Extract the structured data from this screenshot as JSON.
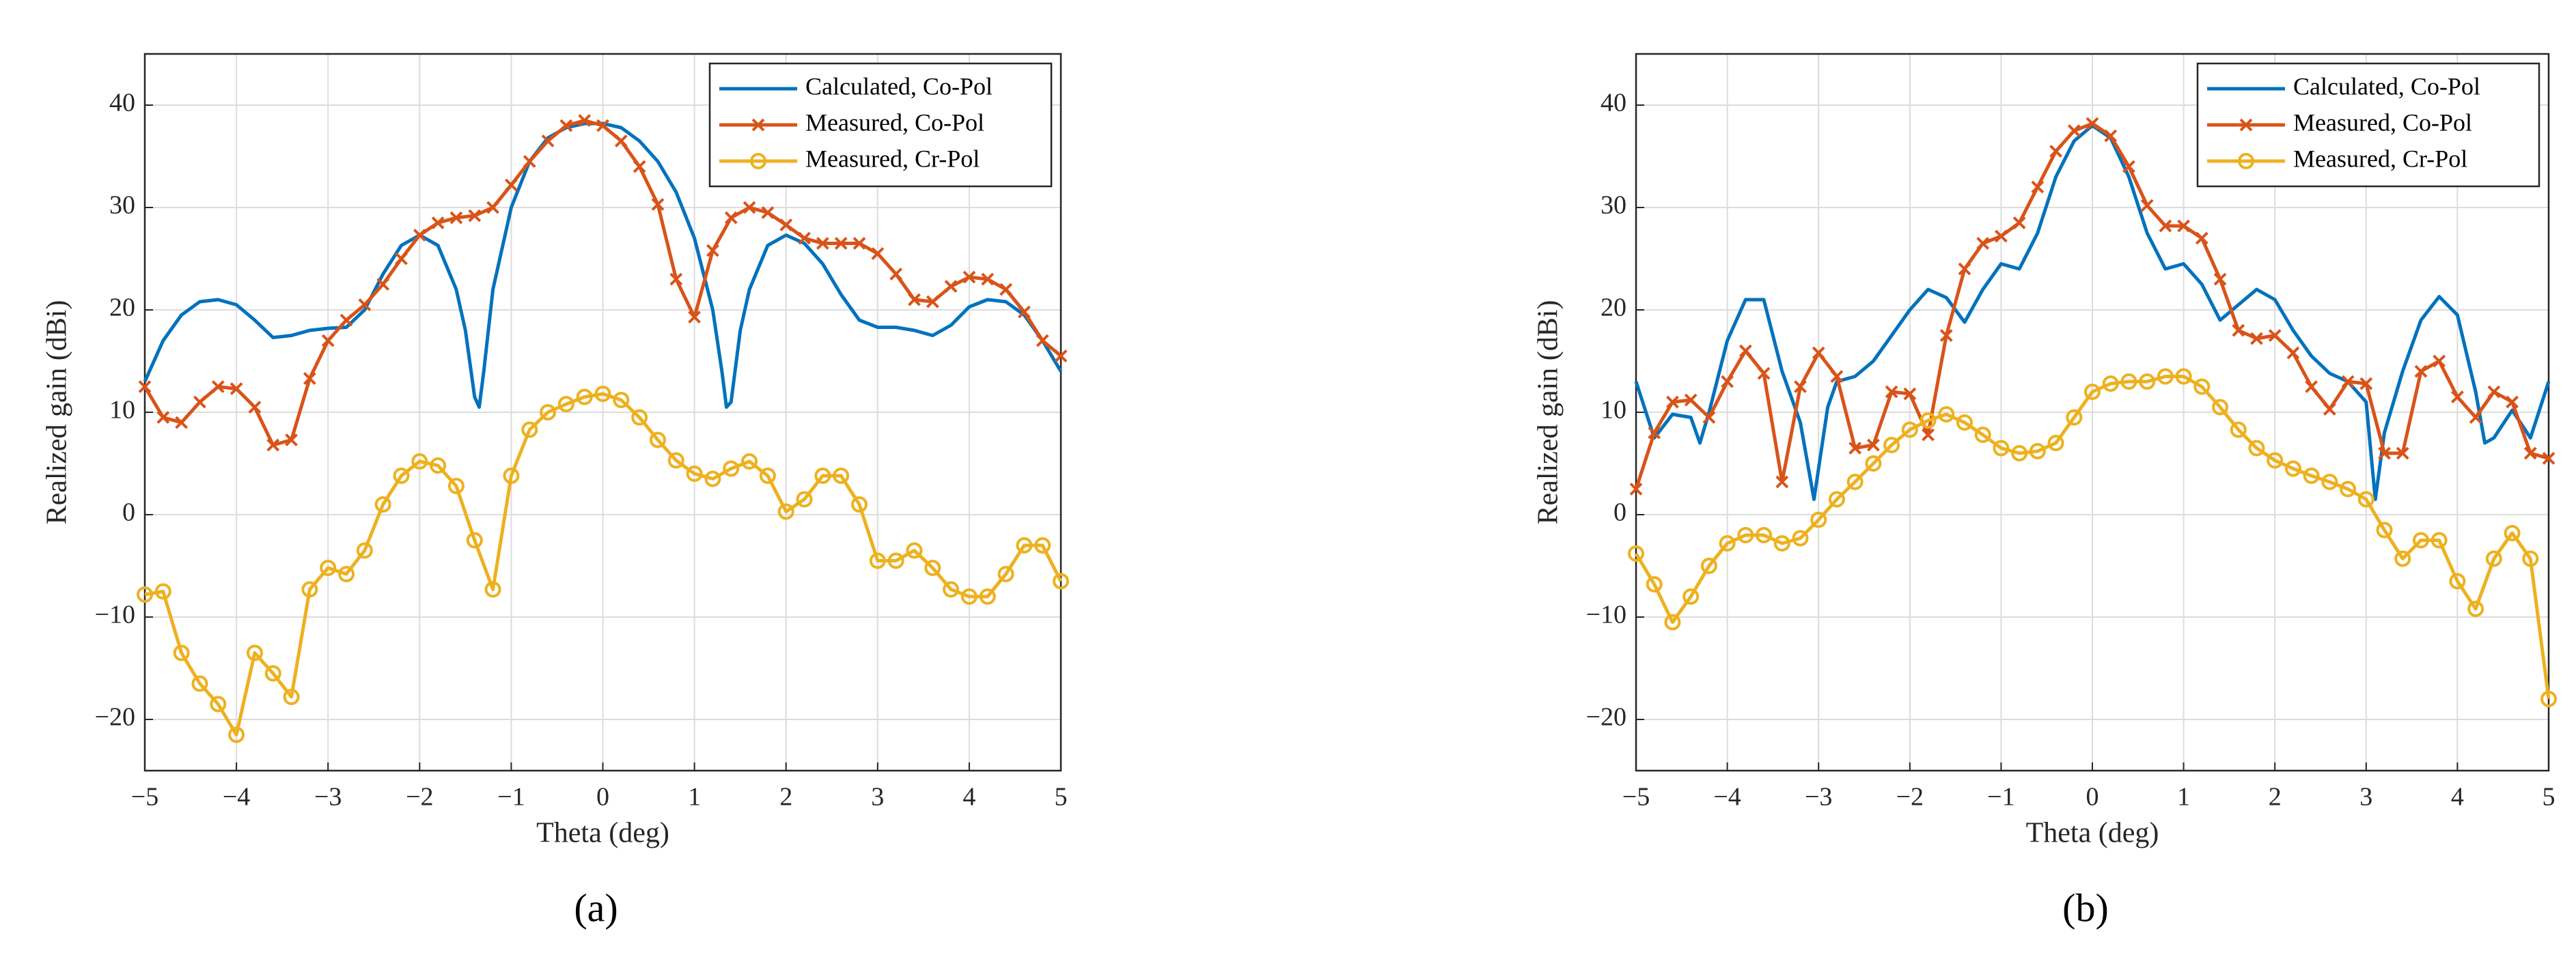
{
  "chart_data": [
    {
      "type": "line",
      "label": "(a)",
      "xlabel": "Theta (deg)",
      "ylabel": "Realized gain (dBi)",
      "xlim": [
        -5,
        5
      ],
      "ylim": [
        -25,
        45
      ],
      "xticks": [
        {
          "value": -5,
          "label": "−5"
        },
        {
          "value": -4,
          "label": "−4"
        },
        {
          "value": -3,
          "label": "−3"
        },
        {
          "value": -2,
          "label": "−2"
        },
        {
          "value": -1,
          "label": "−1"
        },
        0,
        1,
        2,
        3,
        4,
        5
      ],
      "yticks": [
        {
          "value": -20,
          "label": "−20"
        },
        {
          "value": -10,
          "label": "−10"
        },
        0,
        10,
        20,
        30,
        40
      ],
      "grid": true,
      "legend": "upper right",
      "series": [
        {
          "name": "Calculated, Co-Pol",
          "color": "#0072BD",
          "marker": "none",
          "x": [
            -5,
            -4.8,
            -4.6,
            -4.4,
            -4.2,
            -4,
            -3.8,
            -3.6,
            -3.4,
            -3.2,
            -3,
            -2.8,
            -2.6,
            -2.4,
            -2.2,
            -2,
            -1.8,
            -1.6,
            -1.5,
            -1.4,
            -1.35,
            -1.3,
            -1.2,
            -1,
            -0.8,
            -0.6,
            -0.4,
            -0.2,
            0,
            0.2,
            0.4,
            0.6,
            0.8,
            1,
            1.2,
            1.3,
            1.35,
            1.4,
            1.5,
            1.6,
            1.8,
            2,
            2.2,
            2.4,
            2.6,
            2.8,
            3,
            3.2,
            3.4,
            3.6,
            3.8,
            4,
            4.2,
            4.4,
            4.6,
            4.8,
            5
          ],
          "values": [
            13,
            17,
            19.5,
            20.8,
            21,
            20.5,
            19,
            17.3,
            17.5,
            18,
            18.2,
            18.3,
            20,
            23.5,
            26.3,
            27.3,
            26.3,
            22,
            18,
            11.5,
            10.5,
            14,
            22,
            30,
            34.5,
            36.8,
            37.8,
            38.2,
            38.2,
            37.8,
            36.5,
            34.5,
            31.5,
            27,
            20,
            14,
            10.5,
            11,
            18,
            22,
            26.3,
            27.3,
            26.5,
            24.5,
            21.5,
            19,
            18.3,
            18.3,
            18,
            17.5,
            18.5,
            20.3,
            21,
            20.8,
            19.5,
            17,
            14
          ]
        },
        {
          "name": "Measured, Co-Pol",
          "color": "#D95319",
          "marker": "x",
          "x": [
            -5,
            -4.8,
            -4.6,
            -4.4,
            -4.2,
            -4,
            -3.8,
            -3.6,
            -3.4,
            -3.2,
            -3,
            -2.8,
            -2.6,
            -2.4,
            -2.2,
            -2,
            -1.8,
            -1.6,
            -1.4,
            -1.2,
            -1,
            -0.8,
            -0.6,
            -0.4,
            -0.2,
            0,
            0.2,
            0.4,
            0.6,
            0.8,
            1,
            1.2,
            1.4,
            1.6,
            1.8,
            2,
            2.2,
            2.4,
            2.6,
            2.8,
            3,
            3.2,
            3.4,
            3.6,
            3.8,
            4,
            4.2,
            4.4,
            4.6,
            4.8,
            5
          ],
          "values": [
            12.5,
            9.5,
            9,
            11,
            12.5,
            12.3,
            10.5,
            6.8,
            7.3,
            13.3,
            17,
            19,
            20.5,
            22.5,
            25,
            27.3,
            28.5,
            29,
            29.2,
            30,
            32.2,
            34.5,
            36.5,
            38,
            38.5,
            38,
            36.5,
            34,
            30.3,
            23,
            19.3,
            25.8,
            29,
            30,
            29.5,
            28.3,
            27,
            26.5,
            26.5,
            26.5,
            25.5,
            23.5,
            21,
            20.8,
            22.3,
            23.2,
            23,
            22,
            19.8,
            17,
            15.5
          ]
        },
        {
          "name": "Measured, Cr-Pol",
          "color": "#EDB120",
          "marker": "o",
          "x": [
            -5,
            -4.8,
            -4.6,
            -4.4,
            -4.2,
            -4,
            -3.8,
            -3.6,
            -3.4,
            -3.2,
            -3,
            -2.8,
            -2.6,
            -2.4,
            -2.2,
            -2,
            -1.8,
            -1.6,
            -1.4,
            -1.2,
            -1,
            -0.8,
            -0.6,
            -0.4,
            -0.2,
            0,
            0.2,
            0.4,
            0.6,
            0.8,
            1,
            1.2,
            1.4,
            1.6,
            1.8,
            2,
            2.2,
            2.4,
            2.6,
            2.8,
            3,
            3.2,
            3.4,
            3.6,
            3.8,
            4,
            4.2,
            4.4,
            4.6,
            4.8,
            5
          ],
          "values": [
            -7.8,
            -7.5,
            -13.5,
            -16.5,
            -18.5,
            -21.5,
            -13.5,
            -15.5,
            -17.8,
            -7.3,
            -5.2,
            -5.8,
            -3.5,
            1,
            3.8,
            5.2,
            4.8,
            2.8,
            -2.5,
            -7.3,
            3.8,
            8.3,
            10,
            10.8,
            11.5,
            11.8,
            11.2,
            9.5,
            7.3,
            5.3,
            4,
            3.5,
            4.5,
            5.2,
            3.8,
            0.3,
            1.5,
            3.8,
            3.8,
            1,
            -4.5,
            -4.5,
            -3.5,
            -5.2,
            -7.3,
            -8,
            -8,
            -5.8,
            -3,
            -3,
            -6.5
          ]
        }
      ]
    },
    {
      "type": "line",
      "label": "(b)",
      "xlabel": "Theta (deg)",
      "ylabel": "Realized gain (dBi)",
      "xlim": [
        -5,
        5
      ],
      "ylim": [
        -25,
        45
      ],
      "xticks": [
        {
          "value": -5,
          "label": "−5"
        },
        {
          "value": -4,
          "label": "−4"
        },
        {
          "value": -3,
          "label": "−3"
        },
        {
          "value": -2,
          "label": "−2"
        },
        {
          "value": -1,
          "label": "−1"
        },
        0,
        1,
        2,
        3,
        4,
        5
      ],
      "yticks": [
        {
          "value": -20,
          "label": "−20"
        },
        {
          "value": -10,
          "label": "−10"
        },
        0,
        10,
        20,
        30,
        40
      ],
      "grid": true,
      "legend": "upper right",
      "series": [
        {
          "name": "Calculated, Co-Pol",
          "color": "#0072BD",
          "marker": "none",
          "x": [
            -5,
            -4.8,
            -4.6,
            -4.4,
            -4.3,
            -4.2,
            -4,
            -3.8,
            -3.6,
            -3.4,
            -3.2,
            -3.05,
            -2.9,
            -2.8,
            -2.6,
            -2.4,
            -2.2,
            -2,
            -1.8,
            -1.6,
            -1.4,
            -1.2,
            -1,
            -0.8,
            -0.6,
            -0.4,
            -0.2,
            0,
            0.2,
            0.4,
            0.6,
            0.8,
            1,
            1.2,
            1.4,
            1.6,
            1.8,
            2,
            2.2,
            2.4,
            2.6,
            2.8,
            3,
            3.1,
            3.2,
            3.4,
            3.6,
            3.8,
            4,
            4.2,
            4.3,
            4.4,
            4.6,
            4.8,
            5
          ],
          "values": [
            13,
            7.5,
            9.8,
            9.5,
            7,
            10,
            17,
            21,
            21,
            14,
            9,
            1.5,
            10.5,
            13,
            13.5,
            15,
            17.5,
            20,
            22,
            21.2,
            18.8,
            22,
            24.5,
            24,
            27.5,
            33,
            36.5,
            38,
            36.8,
            33,
            27.5,
            24,
            24.5,
            22.5,
            19,
            20.5,
            22,
            21,
            18,
            15.5,
            13.8,
            13,
            11,
            1.5,
            8,
            14,
            19,
            21.3,
            19.5,
            12,
            7,
            7.5,
            10.2,
            7.5,
            13
          ]
        },
        {
          "name": "Measured, Co-Pol",
          "color": "#D95319",
          "marker": "x",
          "x": [
            -5,
            -4.8,
            -4.6,
            -4.4,
            -4.2,
            -4,
            -3.8,
            -3.6,
            -3.4,
            -3.2,
            -3,
            -2.8,
            -2.6,
            -2.4,
            -2.2,
            -2,
            -1.8,
            -1.6,
            -1.4,
            -1.2,
            -1,
            -0.8,
            -0.6,
            -0.4,
            -0.2,
            0,
            0.2,
            0.4,
            0.6,
            0.8,
            1,
            1.2,
            1.4,
            1.6,
            1.8,
            2,
            2.2,
            2.4,
            2.6,
            2.8,
            3,
            3.2,
            3.4,
            3.6,
            3.8,
            4,
            4.2,
            4.4,
            4.6,
            4.8,
            5
          ],
          "values": [
            2.5,
            8,
            11,
            11.2,
            9.5,
            13,
            16,
            13.8,
            3.2,
            12.5,
            15.8,
            13.5,
            6.5,
            6.8,
            12,
            11.8,
            7.8,
            17.5,
            24,
            26.5,
            27.2,
            28.5,
            32,
            35.5,
            37.5,
            38.2,
            37,
            34,
            30.2,
            28.2,
            28.2,
            27,
            23,
            18,
            17.2,
            17.5,
            15.8,
            12.5,
            10.3,
            13,
            12.8,
            6,
            6,
            14,
            15,
            11.5,
            9.5,
            12,
            11,
            6,
            5.5
          ]
        },
        {
          "name": "Measured, Cr-Pol",
          "color": "#EDB120",
          "marker": "o",
          "x": [
            -5,
            -4.8,
            -4.6,
            -4.4,
            -4.2,
            -4,
            -3.8,
            -3.6,
            -3.4,
            -3.2,
            -3,
            -2.8,
            -2.6,
            -2.4,
            -2.2,
            -2,
            -1.8,
            -1.6,
            -1.4,
            -1.2,
            -1,
            -0.8,
            -0.6,
            -0.4,
            -0.2,
            0,
            0.2,
            0.4,
            0.6,
            0.8,
            1,
            1.2,
            1.4,
            1.6,
            1.8,
            2,
            2.2,
            2.4,
            2.6,
            2.8,
            3,
            3.2,
            3.4,
            3.6,
            3.8,
            4,
            4.2,
            4.4,
            4.6,
            4.8,
            5
          ],
          "values": [
            -3.8,
            -6.8,
            -10.5,
            -8,
            -5,
            -2.8,
            -2,
            -2,
            -2.8,
            -2.3,
            -0.5,
            1.5,
            3.2,
            5,
            6.8,
            8.3,
            9.2,
            9.8,
            9,
            7.8,
            6.5,
            6,
            6.2,
            7,
            9.5,
            12,
            12.8,
            13,
            13,
            13.5,
            13.5,
            12.5,
            10.5,
            8.3,
            6.5,
            5.3,
            4.5,
            3.8,
            3.2,
            2.5,
            1.5,
            -1.5,
            -4.3,
            -2.5,
            -2.5,
            -6.5,
            -9.2,
            -4.3,
            -1.8,
            -4.3,
            -18
          ]
        }
      ]
    }
  ]
}
